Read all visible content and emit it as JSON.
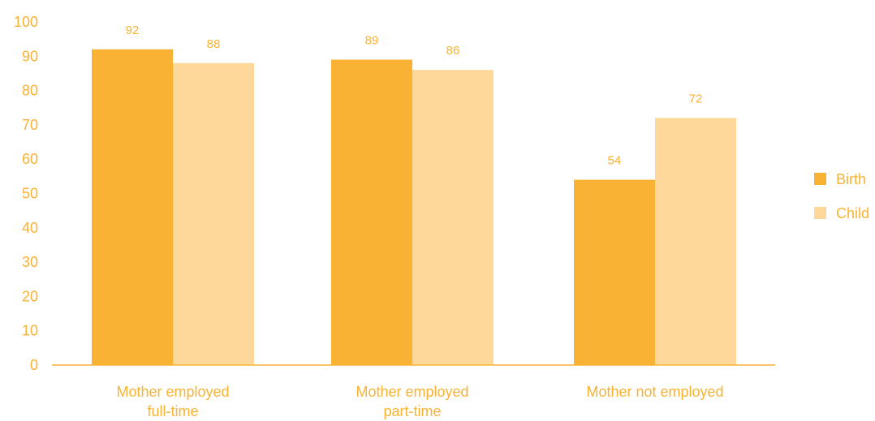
{
  "chart_data": {
    "type": "bar",
    "title": "",
    "xlabel": "",
    "ylabel": "",
    "ylim": [
      0,
      100
    ],
    "yticks": [
      0,
      10,
      20,
      30,
      40,
      50,
      60,
      70,
      80,
      90,
      100
    ],
    "grid": false,
    "legend_position": "right",
    "categories": [
      [
        "Mother employed",
        "full-time"
      ],
      [
        "Mother employed",
        "part-time"
      ],
      [
        "Mother not employed"
      ]
    ],
    "series": [
      {
        "name": "Birth",
        "color": "#F9B233",
        "values": [
          92,
          89,
          54
        ]
      },
      {
        "name": "Child",
        "color": "#FDD89A",
        "values": [
          88,
          86,
          72
        ]
      }
    ],
    "text_color": "#F9B233",
    "axis_color": "#F9B233"
  }
}
